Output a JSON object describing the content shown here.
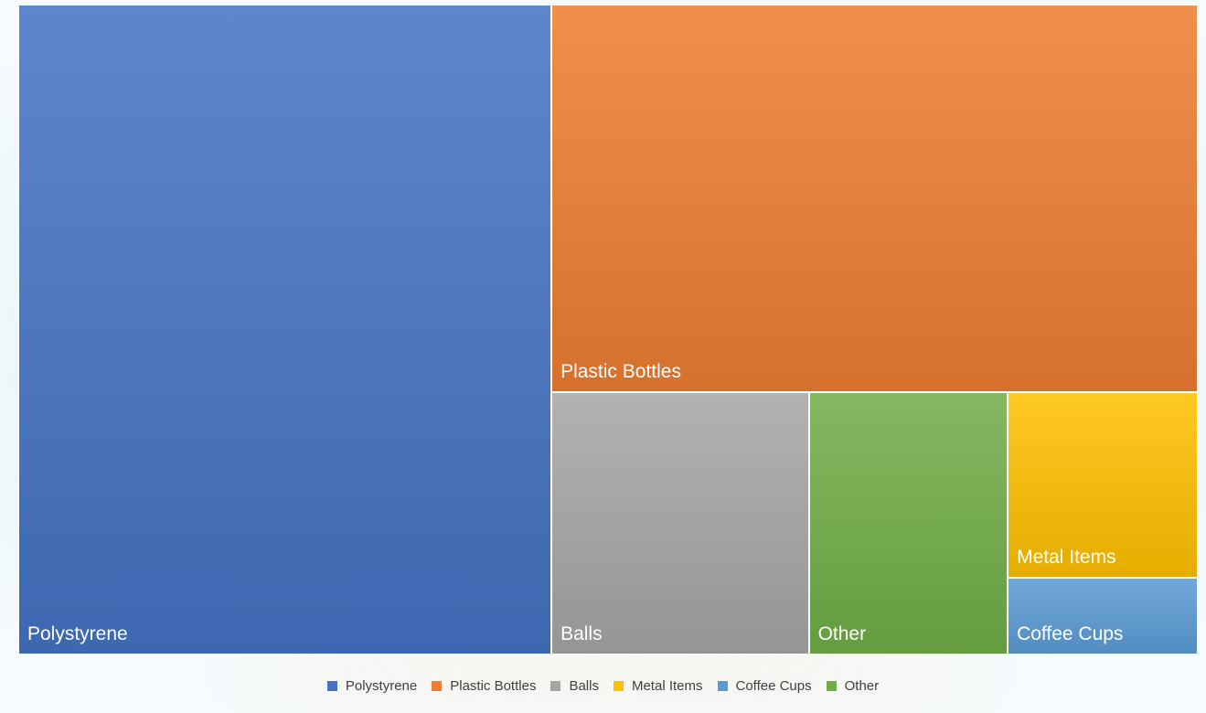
{
  "chart_data": {
    "type": "treemap",
    "series": [
      {
        "name": "Polystyrene",
        "value": 45.2,
        "color": "#4472C4"
      },
      {
        "name": "Plastic Bottles",
        "value": 32.7,
        "color": "#ED7D31"
      },
      {
        "name": "Balls",
        "value": 8.8,
        "color": "#A5A5A5"
      },
      {
        "name": "Other",
        "value": 6.8,
        "color": "#70AD47"
      },
      {
        "name": "Metal Items",
        "value": 4.6,
        "color": "#FFC000"
      },
      {
        "name": "Coffee Cups",
        "value": 1.9,
        "color": "#5B9BD5"
      }
    ],
    "legend": {
      "position": "bottom",
      "items": [
        {
          "name": "Polystyrene",
          "color": "#4472C4"
        },
        {
          "name": "Plastic Bottles",
          "color": "#ED7D31"
        },
        {
          "name": "Balls",
          "color": "#A5A5A5"
        },
        {
          "name": "Metal Items",
          "color": "#FFC000"
        },
        {
          "name": "Coffee Cups",
          "color": "#5B9BD5"
        },
        {
          "name": "Other",
          "color": "#70AD47"
        }
      ]
    }
  }
}
